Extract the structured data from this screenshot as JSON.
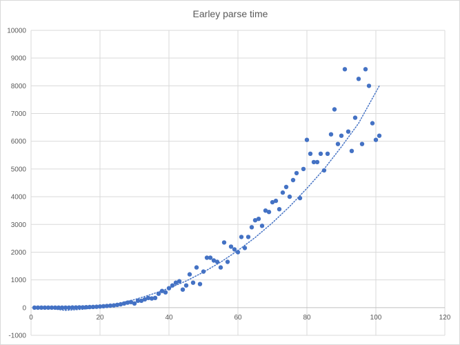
{
  "chart_data": {
    "type": "scatter",
    "title": "Earley parse time",
    "xlabel": "",
    "ylabel": "",
    "xlim": [
      0,
      120
    ],
    "ylim": [
      -1000,
      10000
    ],
    "x_ticks": [
      0,
      20,
      40,
      60,
      80,
      100,
      120
    ],
    "y_ticks": [
      -1000,
      0,
      1000,
      2000,
      3000,
      4000,
      5000,
      6000,
      7000,
      8000,
      9000,
      10000
    ],
    "grid": true,
    "legend": "none",
    "colors": {
      "marker": "#4472c4",
      "trendline": "#4472c4",
      "gridline": "#d9d9d9",
      "axis": "#bfbfbf",
      "text": "#595959"
    },
    "trendline": {
      "type": "polynomial-dotted",
      "x": [
        2,
        5,
        10,
        15,
        20,
        25,
        30,
        35,
        40,
        45,
        50,
        55,
        60,
        65,
        70,
        75,
        80,
        85,
        90,
        95,
        101
      ],
      "y": [
        20,
        -30,
        -100,
        -60,
        20,
        140,
        290,
        480,
        700,
        960,
        1280,
        1640,
        2060,
        2530,
        3060,
        3650,
        4300,
        5000,
        5800,
        6650,
        8000
      ]
    },
    "series": [
      {
        "x": [
          1,
          2,
          3,
          4,
          5,
          6,
          7,
          8,
          9,
          10,
          11,
          12,
          13,
          14,
          15,
          16,
          17,
          18,
          19,
          20,
          21,
          22,
          23,
          24,
          25,
          26,
          27,
          28,
          29,
          30,
          31,
          32,
          33,
          34,
          35,
          36,
          37,
          38,
          39,
          40,
          41,
          42,
          43,
          44,
          45,
          46,
          47,
          48,
          49,
          50,
          51,
          52,
          53,
          54,
          55,
          56,
          57,
          58,
          59,
          60,
          61,
          62,
          63,
          64,
          65,
          66,
          67,
          68,
          69,
          70,
          71,
          72,
          73,
          74,
          75,
          76,
          77,
          78,
          79,
          80,
          81,
          82,
          83,
          84,
          85,
          86,
          87,
          88,
          89,
          90,
          91,
          92,
          93,
          94,
          95,
          96,
          97,
          98,
          99,
          100,
          101
        ],
        "y": [
          0,
          0,
          0,
          0,
          0,
          0,
          0,
          0,
          0,
          0,
          0,
          5,
          5,
          10,
          10,
          15,
          20,
          25,
          30,
          40,
          50,
          60,
          70,
          80,
          100,
          120,
          150,
          180,
          200,
          150,
          250,
          250,
          300,
          350,
          330,
          350,
          500,
          600,
          550,
          700,
          800,
          900,
          950,
          650,
          800,
          1200,
          900,
          1450,
          850,
          1300,
          1800,
          1800,
          1700,
          1650,
          1450,
          2350,
          1650,
          2200,
          2100,
          2000,
          2550,
          2150,
          2550,
          2900,
          3150,
          3200,
          2950,
          3500,
          3450,
          3800,
          3850,
          3550,
          4150,
          4350,
          4000,
          4600,
          4850,
          3950,
          5000,
          6050,
          5550,
          5250,
          5250,
          5550,
          4950,
          5550,
          6250,
          7150,
          5900,
          6200,
          8600,
          6350,
          5650,
          6850,
          8250,
          5900,
          8600,
          8000,
          6650,
          6050,
          6200
        ]
      }
    ]
  }
}
